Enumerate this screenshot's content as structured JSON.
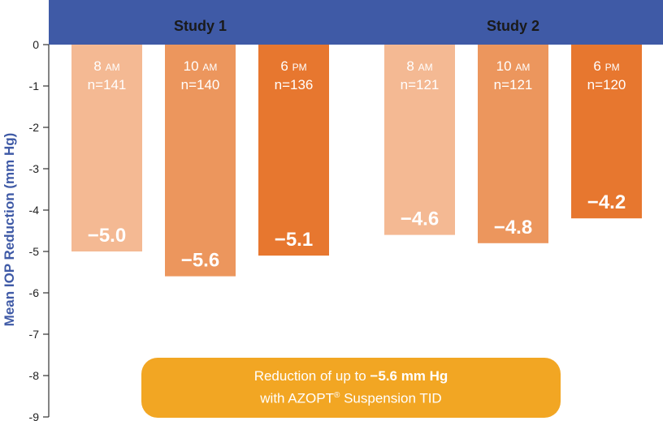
{
  "chart_data": {
    "type": "bar",
    "ylabel": "Mean IOP Reduction (mm Hg)",
    "ylim": [
      -9,
      0
    ],
    "yticks": [
      "0",
      "-1",
      "-2",
      "-3",
      "-4",
      "-5",
      "-6",
      "-7",
      "-8",
      "-9"
    ],
    "groups": [
      {
        "name": "Study 1",
        "bars": [
          {
            "time": "8",
            "period": "AM",
            "n": "n=141",
            "value": -5.0,
            "label": "−5.0",
            "color": "#f4b993"
          },
          {
            "time": "10",
            "period": "AM",
            "n": "n=140",
            "value": -5.6,
            "label": "−5.6",
            "color": "#ec965d"
          },
          {
            "time": "6",
            "period": "PM",
            "n": "n=136",
            "value": -5.1,
            "label": "−5.1",
            "color": "#e7772f"
          }
        ]
      },
      {
        "name": "Study 2",
        "bars": [
          {
            "time": "8",
            "period": "AM",
            "n": "n=121",
            "value": -4.6,
            "label": "−4.6",
            "color": "#f4b993"
          },
          {
            "time": "10",
            "period": "AM",
            "n": "n=121",
            "value": -4.8,
            "label": "−4.8",
            "color": "#ec965d"
          },
          {
            "time": "6",
            "period": "PM",
            "n": "n=120",
            "value": -4.2,
            "label": "−4.2",
            "color": "#e7772f"
          }
        ]
      }
    ],
    "grid": false,
    "colors": {
      "header": "#3f5aa6",
      "axis_label": "#3f5aa6",
      "axis": "#333333",
      "callout": "#f2a623"
    }
  },
  "callout": {
    "line1_prefix": "Reduction of up to ",
    "line1_bold": "−5.6 mm Hg",
    "line2_prefix": "with AZOPT",
    "line2_reg": "®",
    "line2_suffix": " Suspension TID"
  }
}
